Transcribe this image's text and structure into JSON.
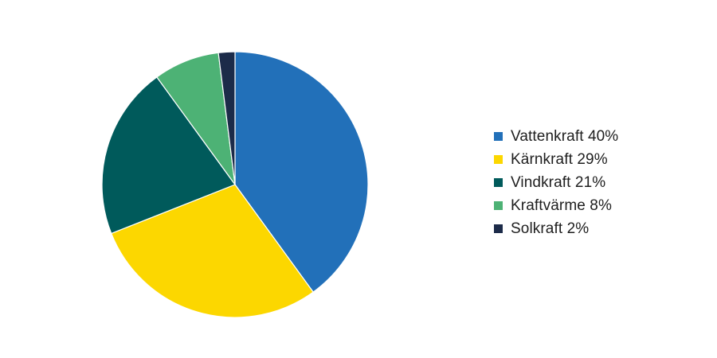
{
  "chart_data": {
    "type": "pie",
    "start_angle_deg": 0,
    "direction": "clockwise",
    "legend_position": "right",
    "slices": [
      {
        "label": "Vattenkraft 40%",
        "value": 40,
        "color": "#2270b9"
      },
      {
        "label": "Kärnkraft 29%",
        "value": 29,
        "color": "#fcd700"
      },
      {
        "label": "Vindkraft 21%",
        "value": 21,
        "color": "#005a5b"
      },
      {
        "label": "Kraftvärme 8%",
        "value": 8,
        "color": "#4db275"
      },
      {
        "label": "Solkraft 2%",
        "value": 2,
        "color": "#1c2b49"
      }
    ]
  }
}
